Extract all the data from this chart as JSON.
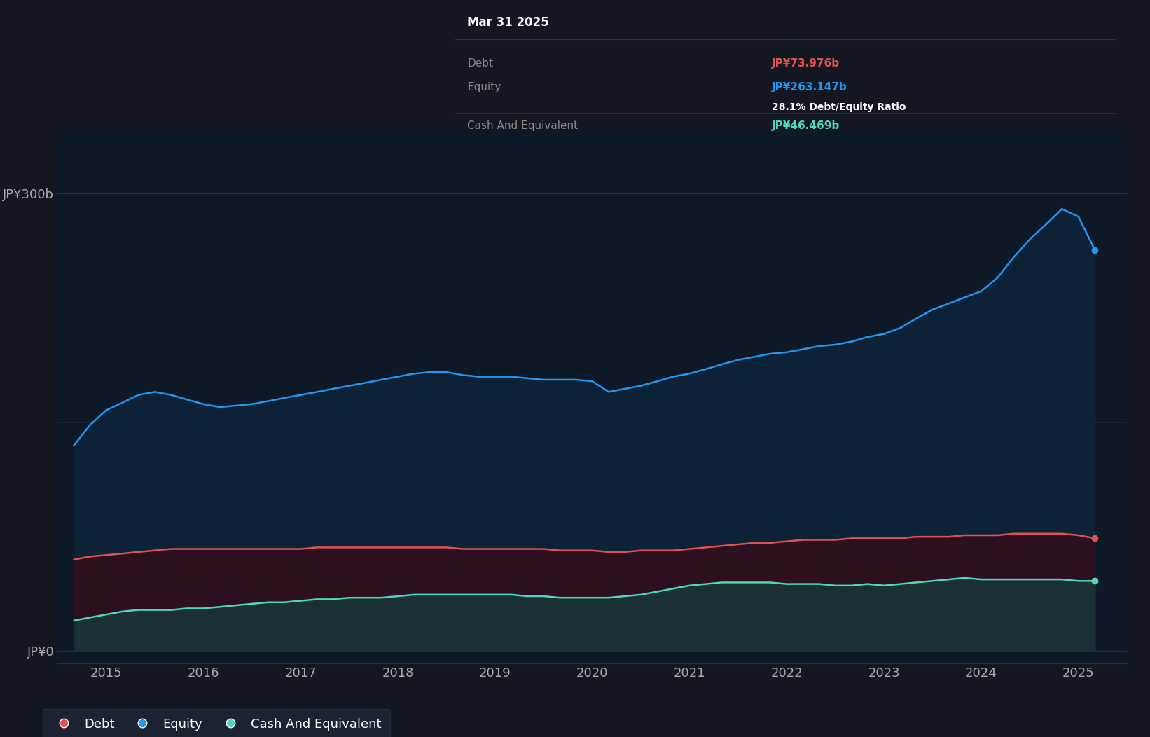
{
  "background_color": "#131722",
  "plot_bg_color": "#131722",
  "chart_bg_color": "#0e1928",
  "ylabel_300": "JP¥300b",
  "ylabel_0": "JP¥0",
  "x_start_year": 2014.5,
  "x_end_year": 2025.5,
  "ylim": [
    -8,
    340
  ],
  "grid_color": "#2a3040",
  "equity_color": "#2196f3",
  "equity_fill": "#0d2137",
  "debt_color": "#e05252",
  "debt_fill": "#2d1020",
  "cash_color": "#4dd9b8",
  "cash_fill": "#1a3035",
  "tooltip_bg": "#000000",
  "tooltip_title": "Mar 31 2025",
  "tooltip_debt_label": "Debt",
  "tooltip_debt_value": "JP¥73.976b",
  "tooltip_equity_label": "Equity",
  "tooltip_equity_value": "JP¥263.147b",
  "tooltip_ratio": "28.1% Debt/Equity Ratio",
  "tooltip_cash_label": "Cash And Equivalent",
  "tooltip_cash_value": "JP¥46.469b",
  "legend_labels": [
    "Debt",
    "Equity",
    "Cash And Equivalent"
  ],
  "legend_colors": [
    "#e05252",
    "#2196f3",
    "#4dd9b8"
  ],
  "years": [
    2014.67,
    2014.83,
    2015.0,
    2015.17,
    2015.33,
    2015.5,
    2015.67,
    2015.83,
    2016.0,
    2016.17,
    2016.33,
    2016.5,
    2016.67,
    2016.83,
    2017.0,
    2017.17,
    2017.33,
    2017.5,
    2017.67,
    2017.83,
    2018.0,
    2018.17,
    2018.33,
    2018.5,
    2018.67,
    2018.83,
    2019.0,
    2019.17,
    2019.33,
    2019.5,
    2019.67,
    2019.83,
    2020.0,
    2020.17,
    2020.33,
    2020.5,
    2020.67,
    2020.83,
    2021.0,
    2021.17,
    2021.33,
    2021.5,
    2021.67,
    2021.83,
    2022.0,
    2022.17,
    2022.33,
    2022.5,
    2022.67,
    2022.83,
    2023.0,
    2023.17,
    2023.33,
    2023.5,
    2023.67,
    2023.83,
    2024.0,
    2024.17,
    2024.33,
    2024.5,
    2024.67,
    2024.83,
    2025.0,
    2025.17
  ],
  "equity_values": [
    135,
    148,
    158,
    163,
    168,
    170,
    168,
    165,
    162,
    160,
    161,
    162,
    164,
    166,
    168,
    170,
    172,
    174,
    176,
    178,
    180,
    182,
    183,
    183,
    181,
    180,
    180,
    180,
    179,
    178,
    178,
    178,
    177,
    170,
    172,
    174,
    177,
    180,
    182,
    185,
    188,
    191,
    193,
    195,
    196,
    198,
    200,
    201,
    203,
    206,
    208,
    212,
    218,
    224,
    228,
    232,
    236,
    245,
    258,
    270,
    280,
    290,
    285,
    263
  ],
  "debt_values": [
    60,
    62,
    63,
    64,
    65,
    66,
    67,
    67,
    67,
    67,
    67,
    67,
    67,
    67,
    67,
    68,
    68,
    68,
    68,
    68,
    68,
    68,
    68,
    68,
    67,
    67,
    67,
    67,
    67,
    67,
    66,
    66,
    66,
    65,
    65,
    66,
    66,
    66,
    67,
    68,
    69,
    70,
    71,
    71,
    72,
    73,
    73,
    73,
    74,
    74,
    74,
    74,
    75,
    75,
    75,
    76,
    76,
    76,
    77,
    77,
    77,
    77,
    76,
    74
  ],
  "cash_values": [
    20,
    22,
    24,
    26,
    27,
    27,
    27,
    28,
    28,
    29,
    30,
    31,
    32,
    32,
    33,
    34,
    34,
    35,
    35,
    35,
    36,
    37,
    37,
    37,
    37,
    37,
    37,
    37,
    36,
    36,
    35,
    35,
    35,
    35,
    36,
    37,
    39,
    41,
    43,
    44,
    45,
    45,
    45,
    45,
    44,
    44,
    44,
    43,
    43,
    44,
    43,
    44,
    45,
    46,
    47,
    48,
    47,
    47,
    47,
    47,
    47,
    47,
    46,
    46
  ]
}
